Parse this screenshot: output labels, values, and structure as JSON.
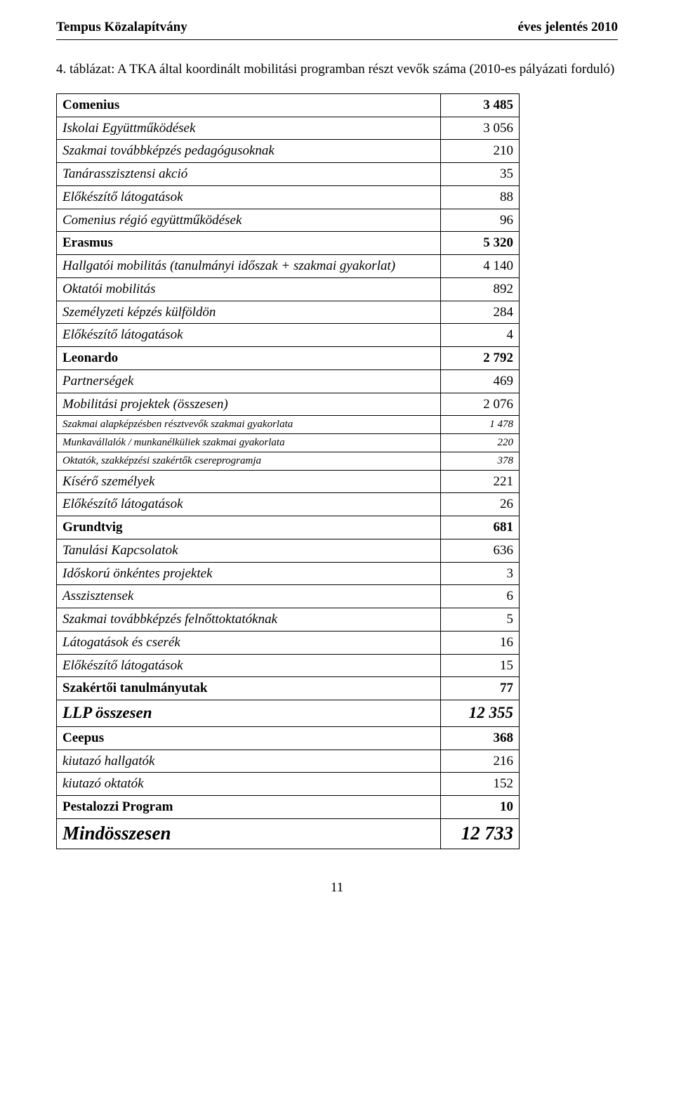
{
  "header": {
    "left": "Tempus Közalapítvány",
    "right": "éves jelentés 2010"
  },
  "title": "4. táblázat: A TKA által koordinált mobilitási programban részt vevők száma (2010-es pályázati forduló)",
  "rows": [
    {
      "label": "Comenius",
      "value": "3 485",
      "label_classes": "bold",
      "value_classes": "bold"
    },
    {
      "label": "Iskolai Együttműködések",
      "value": "3 056",
      "label_classes": "italic right",
      "value_classes": ""
    },
    {
      "label": "Szakmai továbbképzés pedagógusoknak",
      "value": "210",
      "label_classes": "italic right",
      "value_classes": ""
    },
    {
      "label": "Tanárasszisztensi akció",
      "value": "35",
      "label_classes": "italic right",
      "value_classes": ""
    },
    {
      "label": "Előkészítő látogatások",
      "value": "88",
      "label_classes": "italic right",
      "value_classes": ""
    },
    {
      "label": "Comenius régió együttműködések",
      "value": "96",
      "label_classes": "italic right",
      "value_classes": ""
    },
    {
      "label": "Erasmus",
      "value": "5 320",
      "label_classes": "bold",
      "value_classes": "bold"
    },
    {
      "label": "Hallgatói mobilitás (tanulmányi időszak + szakmai gyakorlat)",
      "value": "4 140",
      "label_classes": "italic right",
      "value_classes": ""
    },
    {
      "label": "Oktatói mobilitás",
      "value": "892",
      "label_classes": "italic right",
      "value_classes": ""
    },
    {
      "label": "Személyzeti képzés külföldön",
      "value": "284",
      "label_classes": "italic right",
      "value_classes": ""
    },
    {
      "label": "Előkészítő látogatások",
      "value": "4",
      "label_classes": "italic right",
      "value_classes": ""
    },
    {
      "label": "Leonardo",
      "value": "2 792",
      "label_classes": "bold",
      "value_classes": "bold"
    },
    {
      "label": "Partnerségek",
      "value": "469",
      "label_classes": "italic right",
      "value_classes": ""
    },
    {
      "label": "Mobilitási projektek (összesen)",
      "value": "2 076",
      "label_classes": "italic right",
      "value_classes": ""
    },
    {
      "label": "Szakmai alapképzésben résztvevők szakmai gyakorlata",
      "value": "1 478",
      "label_classes": "italic small",
      "value_classes": "italic small"
    },
    {
      "label": "Munkavállalók / munkanélküliek szakmai gyakorlata",
      "value": "220",
      "label_classes": "italic small",
      "value_classes": "italic small"
    },
    {
      "label": "Oktatók, szakképzési szakértők csereprogramja",
      "value": "378",
      "label_classes": "italic small",
      "value_classes": "italic small"
    },
    {
      "label": "Kísérő személyek",
      "value": "221",
      "label_classes": "italic right",
      "value_classes": ""
    },
    {
      "label": "Előkészítő látogatások",
      "value": "26",
      "label_classes": "italic right",
      "value_classes": ""
    },
    {
      "label": "Grundtvig",
      "value": "681",
      "label_classes": "bold",
      "value_classes": "bold"
    },
    {
      "label": "Tanulási Kapcsolatok",
      "value": "636",
      "label_classes": "italic right",
      "value_classes": ""
    },
    {
      "label": "Időskorú önkéntes projektek",
      "value": "3",
      "label_classes": "italic right",
      "value_classes": ""
    },
    {
      "label": "Asszisztensek",
      "value": "6",
      "label_classes": "italic right",
      "value_classes": ""
    },
    {
      "label": "Szakmai továbbképzés felnőttoktatóknak",
      "value": "5",
      "label_classes": "italic right",
      "value_classes": ""
    },
    {
      "label": "Látogatások és cserék",
      "value": "16",
      "label_classes": "italic right",
      "value_classes": ""
    },
    {
      "label": "Előkészítő látogatások",
      "value": "15",
      "label_classes": "italic right",
      "value_classes": ""
    },
    {
      "label": "Szakértői tanulmányutak",
      "value": "77",
      "label_classes": "bold",
      "value_classes": "bold"
    },
    {
      "label": "LLP összesen",
      "value": "12 355",
      "label_classes": "bigger right",
      "value_classes": "bigger"
    },
    {
      "label": "Ceepus",
      "value": "368",
      "label_classes": "bold",
      "value_classes": "bold"
    },
    {
      "label": "kiutazó hallgatók",
      "value": "216",
      "label_classes": "italic right",
      "value_classes": ""
    },
    {
      "label": "kiutazó oktatók",
      "value": "152",
      "label_classes": "italic right",
      "value_classes": ""
    },
    {
      "label": "Pestalozzi Program",
      "value": "10",
      "label_classes": "bold",
      "value_classes": "bold"
    },
    {
      "label": "Mindösszesen",
      "value": "12 733",
      "label_classes": "biggest right",
      "value_classes": "biggest"
    }
  ],
  "page_number": "11"
}
